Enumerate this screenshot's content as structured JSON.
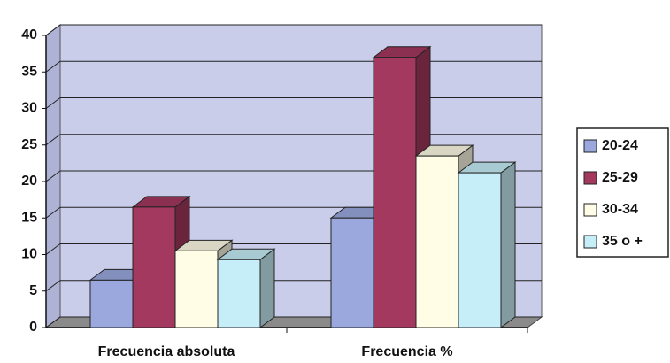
{
  "chart_data": {
    "type": "bar3d",
    "categories": [
      "Frecuencia absoluta",
      "Frecuencia %"
    ],
    "series": [
      {
        "name": "20-24",
        "color": "#9aa8de",
        "values": [
          6.5,
          15
        ]
      },
      {
        "name": "25-29",
        "color": "#a3395e",
        "values": [
          16.5,
          37
        ]
      },
      {
        "name": "30-34",
        "color": "#fffde6",
        "values": [
          10.5,
          23.5
        ]
      },
      {
        "name": "35 o +",
        "color": "#c6eef8",
        "values": [
          9.3,
          21.2
        ]
      }
    ],
    "ylim": [
      0,
      40
    ],
    "yticks": [
      0,
      5,
      10,
      15,
      20,
      25,
      30,
      35,
      40
    ],
    "grid": true,
    "legend": "right"
  }
}
